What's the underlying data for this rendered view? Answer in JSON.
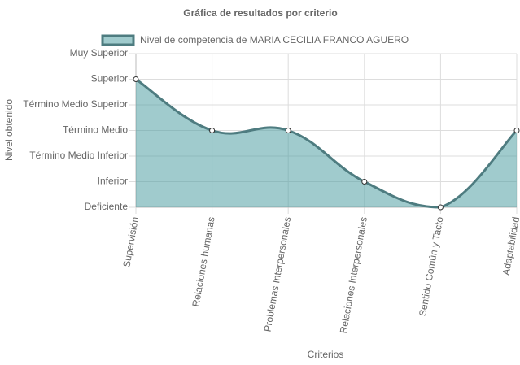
{
  "chart_data": {
    "type": "line",
    "title": "Gráfica de resultados por criterio",
    "x_label": "Criterios",
    "y_label": "Nivel obtenido",
    "categories": [
      "Supervisión",
      "Relaciones humanas",
      "Problemas Interpersonales",
      "Relaciones Interpersonales",
      "Sentido Común y Tacto",
      "Adaptabilidad"
    ],
    "series": [
      {
        "name": "Nivel de competencia de MARIA CECILIA FRANCO AGUERO",
        "color": "#4e7c80",
        "fill_color": "rgba(72,155,160,0.52)",
        "values": [
          5,
          3,
          3,
          1,
          0,
          3
        ]
      }
    ],
    "ylim": [
      0,
      6
    ],
    "yticks": [
      {
        "value": 0,
        "label": "Deficiente"
      },
      {
        "value": 1,
        "label": "Inferior"
      },
      {
        "value": 2,
        "label": "Término Medio Inferior"
      },
      {
        "value": 3,
        "label": "Término Medio"
      },
      {
        "value": 4,
        "label": "Término Medio Superior"
      },
      {
        "value": 5,
        "label": "Superior"
      },
      {
        "value": 6,
        "label": "Muy Superior"
      }
    ],
    "grid": true,
    "legend_position": "top"
  }
}
